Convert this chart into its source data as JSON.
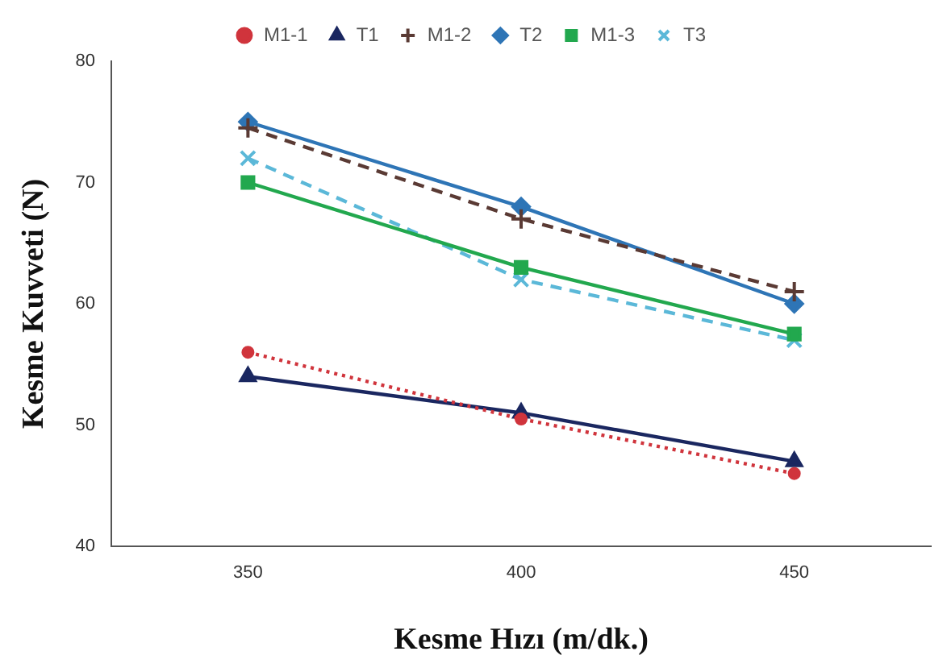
{
  "chart_data": {
    "type": "line",
    "xlabel": "Kesme Hızı (m/dk.)",
    "ylabel": "Kesme Kuvveti (N)",
    "categories": [
      "350",
      "400",
      "450"
    ],
    "ylim": [
      40,
      80
    ],
    "yticks": [
      40,
      50,
      60,
      70,
      80
    ],
    "grid": false,
    "legend": "top",
    "series": [
      {
        "name": "M1-1",
        "color": "#d0343c",
        "values": [
          56,
          50.5,
          46
        ],
        "marker": "circle",
        "line_style": "dotted"
      },
      {
        "name": "T1",
        "color": "#1a2760",
        "values": [
          54,
          51,
          47
        ],
        "marker": "triangle",
        "line_style": "solid"
      },
      {
        "name": "M1-2",
        "color": "#5a3a34",
        "values": [
          74.5,
          67,
          61
        ],
        "marker": "cross",
        "line_style": "dashed"
      },
      {
        "name": "T2",
        "color": "#2e75b6",
        "values": [
          75,
          68,
          60
        ],
        "marker": "diamond",
        "line_style": "solid"
      },
      {
        "name": "M1-3",
        "color": "#22a84e",
        "values": [
          70,
          63,
          57.5
        ],
        "marker": "square",
        "line_style": "solid"
      },
      {
        "name": "T3",
        "color": "#5bb8d8",
        "values": [
          72,
          62,
          57
        ],
        "marker": "x",
        "line_style": "dashed"
      }
    ]
  }
}
